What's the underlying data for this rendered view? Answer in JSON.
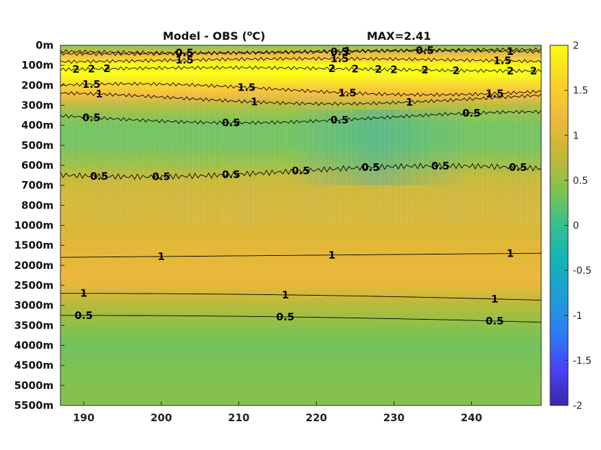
{
  "chart_data": {
    "type": "heatmap",
    "title": "Model - OBS (oC)",
    "title_main": "Model - OBS (",
    "title_sup": "o",
    "title_end": "C)",
    "max_label": "MAX=2.41",
    "x_ticks": [
      "190",
      "200",
      "210",
      "220",
      "230",
      "240"
    ],
    "x_tick_values": [
      190,
      200,
      210,
      220,
      230,
      240
    ],
    "xlim": [
      187,
      249
    ],
    "y_ticks": [
      "0m",
      "100m",
      "200m",
      "300m",
      "400m",
      "500m",
      "600m",
      "700m",
      "800m",
      "1000m",
      "1500m",
      "2000m",
      "2500m",
      "3000m",
      "3500m",
      "4000m",
      "4500m",
      "5000m",
      "5500m"
    ],
    "colorbar": {
      "ticks": [
        "2",
        "1.5",
        "1",
        "0.5",
        "0",
        "-0.5",
        "-1",
        "-1.5",
        "-2"
      ],
      "tick_values": [
        2,
        1.5,
        1,
        0.5,
        0,
        -0.5,
        -1,
        -1.5,
        -2
      ],
      "range": [
        -2,
        2
      ],
      "colormap": "parula",
      "stops": [
        "#3e26a8",
        "#4743f8",
        "#2e7cf3",
        "#1e9dd9",
        "#10b4b8",
        "#36c08f",
        "#84c24d",
        "#c7b735",
        "#f2b83c",
        "#f9d427",
        "#f9fb0e"
      ]
    },
    "depth_profile": {
      "depth_index": [
        0,
        0.5,
        1,
        1.5,
        2,
        2.5,
        3,
        3.5,
        4,
        5,
        6,
        6.5,
        7,
        8,
        9,
        10,
        11,
        11.5,
        12,
        13,
        14,
        15,
        16,
        17,
        18
      ],
      "value": [
        0.4,
        1.2,
        2.0,
        2.1,
        1.6,
        1.2,
        0.7,
        0.45,
        0.3,
        0.3,
        0.55,
        0.75,
        0.85,
        0.9,
        0.95,
        1.05,
        1.1,
        1.15,
        1.1,
        0.7,
        0.45,
        0.3,
        0.35,
        0.4,
        0.4
      ]
    },
    "contours": [
      {
        "level": "0.5",
        "depth_index": 0.3,
        "label_x": [
          203,
          223,
          234
        ]
      },
      {
        "level": "1",
        "depth_index": 0.35,
        "label_x": [
          224,
          245
        ]
      },
      {
        "level": "1.5",
        "depth_index": 0.75,
        "label_x": [
          203,
          223,
          244
        ]
      },
      {
        "level": "2",
        "depth_index": 1.2,
        "label_x": [
          189,
          191,
          193,
          222,
          225,
          228,
          230,
          234,
          238,
          245,
          248
        ]
      },
      {
        "level": "1.5",
        "depth_index": 2.2,
        "label_x": [
          191,
          211,
          224,
          243
        ]
      },
      {
        "level": "1",
        "depth_index": 2.65,
        "label_x": [
          192,
          212,
          232
        ]
      },
      {
        "level": "0.5",
        "depth_index": 3.6,
        "label_x": [
          191,
          209,
          223,
          240
        ]
      },
      {
        "level": "0.5",
        "depth_index": 6.3,
        "label_x": [
          192,
          200,
          209,
          218,
          227,
          236,
          246
        ]
      },
      {
        "level": "1",
        "depth_index": 10.6,
        "label_x": [
          200,
          222,
          245
        ]
      },
      {
        "level": "1",
        "depth_index": 12.4,
        "label_x": [
          190,
          216,
          243
        ]
      },
      {
        "level": "0.5",
        "depth_index": 13.5,
        "label_x": [
          190,
          216,
          243
        ]
      }
    ]
  }
}
